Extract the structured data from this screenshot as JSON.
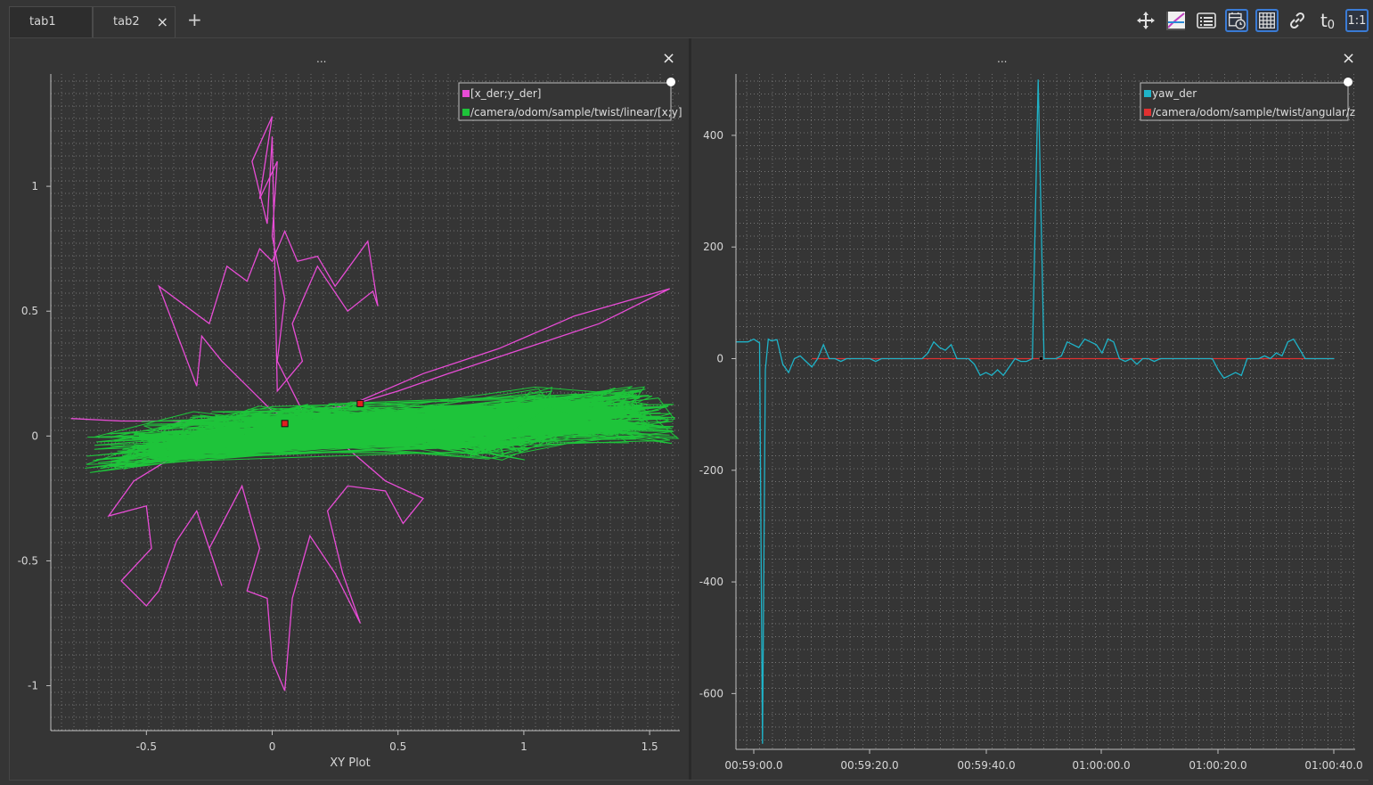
{
  "tabs": [
    {
      "label": "tab1"
    },
    {
      "label": "tab2"
    }
  ],
  "add_tab": "+",
  "close_glyph": "×",
  "toolbar": {
    "icons": [
      "move-icon",
      "zoom-fit-icon",
      "legend-list-icon",
      "time-tracker-icon",
      "grid-icon",
      "link-icon",
      "time-offset-icon",
      "ratio-icon"
    ],
    "time_offset_label": "t",
    "time_offset_sub": "0",
    "ratio_label": "1:1"
  },
  "left_plot": {
    "title_dots": "...",
    "xlabel": "XY Plot",
    "legend": [
      {
        "label": "[x_der;y_der]",
        "color": "#e84cd6"
      },
      {
        "label": "/camera/odom/sample/twist/linear/[x;y]",
        "color": "#1ec43a"
      }
    ]
  },
  "right_plot": {
    "title_dots": "...",
    "legend": [
      {
        "label": "yaw_der",
        "color": "#1fb3c8"
      },
      {
        "label": "/camera/odom/sample/twist/angular/z",
        "color": "#e03030"
      }
    ]
  },
  "chart_data": [
    {
      "type": "scatter",
      "xlabel": "XY Plot",
      "ylabel": "",
      "xlim": [
        -0.88,
        1.62
      ],
      "ylim": [
        -1.18,
        1.45
      ],
      "xticks": [
        "-0.5",
        "0",
        "0.5",
        "1",
        "1.5"
      ],
      "yticks": [
        "1",
        "0.5",
        "0",
        "-0.5",
        "-1"
      ],
      "grid": true,
      "legend_position": "top-right",
      "series": [
        {
          "name": "[x_der;y_der]",
          "color": "#e84cd6",
          "points": [
            [
              -0.8,
              0.07
            ],
            [
              -0.6,
              0.06
            ],
            [
              -0.4,
              0.06
            ],
            [
              -0.15,
              0.05
            ],
            [
              0.0,
              0.03
            ],
            [
              0.15,
              0.02
            ],
            [
              0.3,
              0.01
            ],
            [
              0.0,
              0.0
            ],
            [
              -0.2,
              -0.02
            ],
            [
              -0.42,
              -0.1
            ],
            [
              -0.55,
              -0.18
            ],
            [
              -0.65,
              -0.32
            ],
            [
              -0.5,
              -0.28
            ],
            [
              -0.48,
              -0.45
            ],
            [
              -0.6,
              -0.58
            ],
            [
              -0.5,
              -0.68
            ],
            [
              -0.45,
              -0.62
            ],
            [
              -0.38,
              -0.42
            ],
            [
              -0.3,
              -0.3
            ],
            [
              -0.2,
              -0.6
            ],
            [
              -0.25,
              -0.45
            ],
            [
              -0.12,
              -0.2
            ],
            [
              -0.05,
              -0.45
            ],
            [
              -0.1,
              -0.62
            ],
            [
              -0.02,
              -0.65
            ],
            [
              0.0,
              -0.9
            ],
            [
              0.05,
              -1.02
            ],
            [
              0.08,
              -0.65
            ],
            [
              0.15,
              -0.4
            ],
            [
              0.25,
              -0.55
            ],
            [
              0.35,
              -0.75
            ],
            [
              0.28,
              -0.55
            ],
            [
              0.22,
              -0.3
            ],
            [
              0.3,
              -0.2
            ],
            [
              0.45,
              -0.22
            ],
            [
              0.52,
              -0.35
            ],
            [
              0.6,
              -0.25
            ],
            [
              0.45,
              -0.18
            ],
            [
              0.3,
              -0.05
            ],
            [
              0.15,
              0.05
            ],
            [
              0.0,
              0.1
            ],
            [
              -0.1,
              0.2
            ],
            [
              -0.2,
              0.3
            ],
            [
              -0.28,
              0.4
            ],
            [
              -0.3,
              0.2
            ],
            [
              -0.45,
              0.6
            ],
            [
              -0.25,
              0.45
            ],
            [
              -0.18,
              0.68
            ],
            [
              -0.1,
              0.62
            ],
            [
              -0.05,
              0.75
            ],
            [
              0.0,
              0.7
            ],
            [
              0.05,
              0.82
            ],
            [
              0.1,
              0.7
            ],
            [
              0.18,
              0.72
            ],
            [
              0.25,
              0.6
            ],
            [
              0.38,
              0.78
            ],
            [
              0.42,
              0.52
            ],
            [
              0.4,
              0.58
            ],
            [
              0.3,
              0.5
            ],
            [
              0.18,
              0.68
            ],
            [
              0.08,
              0.45
            ],
            [
              0.12,
              0.3
            ],
            [
              0.02,
              0.18
            ],
            [
              0.0,
              1.2
            ],
            [
              -0.02,
              0.85
            ],
            [
              -0.08,
              1.1
            ],
            [
              0.0,
              1.28
            ],
            [
              -0.05,
              0.95
            ],
            [
              0.02,
              1.1
            ],
            [
              0.0,
              0.8
            ],
            [
              0.05,
              0.55
            ],
            [
              0.02,
              0.3
            ],
            [
              0.12,
              0.1
            ],
            [
              0.3,
              0.12
            ],
            [
              0.6,
              0.25
            ],
            [
              0.9,
              0.35
            ],
            [
              1.2,
              0.48
            ],
            [
              1.58,
              0.59
            ],
            [
              1.3,
              0.45
            ],
            [
              1.0,
              0.35
            ],
            [
              0.7,
              0.25
            ],
            [
              0.5,
              0.18
            ],
            [
              0.3,
              0.12
            ]
          ]
        },
        {
          "name": "/camera/odom/sample/twist/linear/[x;y]",
          "color": "#1ec43a",
          "points": [
            [
              -0.62,
              -0.07
            ],
            [
              -0.4,
              -0.02
            ],
            [
              -0.2,
              0.02
            ],
            [
              0.0,
              0.04
            ],
            [
              0.2,
              0.05
            ],
            [
              0.35,
              0.06
            ],
            [
              0.5,
              0.04
            ],
            [
              0.6,
              0.03
            ],
            [
              0.7,
              0.02
            ],
            [
              0.8,
              0.0
            ],
            [
              0.9,
              -0.02
            ],
            [
              1.0,
              0.05
            ],
            [
              1.1,
              0.12
            ],
            [
              1.2,
              0.08
            ],
            [
              1.3,
              0.1
            ],
            [
              1.42,
              0.12
            ],
            [
              1.5,
              0.05
            ]
          ],
          "markers": [
            [
              0.05,
              0.05
            ],
            [
              0.35,
              0.13
            ]
          ]
        }
      ]
    },
    {
      "type": "line",
      "xlabel": "",
      "ylabel": "",
      "ylim": [
        -700,
        510
      ],
      "xticks": [
        "00:59:00.0",
        "00:59:20.0",
        "00:59:40.0",
        "01:00:00.0",
        "01:00:20.0",
        "01:00:40.0"
      ],
      "yticks": [
        "400",
        "200",
        "0",
        "-200",
        "-400",
        "-600"
      ],
      "grid": true,
      "legend_position": "top-right",
      "series": [
        {
          "name": "yaw_der",
          "color": "#1fb3c8",
          "x": [
            -3,
            -1,
            0,
            1,
            1.5,
            2,
            2.5,
            3,
            4,
            5,
            6,
            7,
            8,
            9,
            10,
            11,
            12,
            13,
            14,
            15,
            16,
            17,
            18,
            19,
            20,
            21,
            22,
            23,
            24,
            25,
            26,
            27,
            28,
            29,
            30,
            31,
            32,
            33,
            34,
            35,
            36,
            37,
            38,
            39,
            40,
            41,
            42,
            43,
            44,
            45,
            46,
            47,
            48,
            49,
            50,
            51,
            52,
            53,
            54,
            55,
            56,
            57,
            58,
            59,
            60,
            61,
            62,
            63,
            64,
            65,
            66,
            67,
            68,
            69,
            70,
            71,
            72,
            73,
            74,
            75,
            76,
            77,
            78,
            79,
            80,
            81,
            82,
            83,
            84,
            85,
            86,
            87,
            88,
            89,
            90,
            91,
            92,
            93,
            95,
            100
          ],
          "values": [
            30,
            30,
            35,
            28,
            -690,
            -20,
            35,
            32,
            34,
            -10,
            -25,
            0,
            5,
            -5,
            -15,
            0,
            25,
            0,
            0,
            -5,
            0,
            0,
            0,
            0,
            0,
            -5,
            0,
            0,
            0,
            0,
            0,
            0,
            0,
            0,
            10,
            30,
            20,
            15,
            25,
            0,
            0,
            0,
            -10,
            -30,
            -25,
            -30,
            -20,
            -30,
            -15,
            0,
            -5,
            -5,
            0,
            500,
            0,
            0,
            0,
            5,
            30,
            25,
            20,
            35,
            30,
            25,
            10,
            35,
            30,
            0,
            -5,
            0,
            -10,
            0,
            0,
            -5,
            0,
            0,
            0,
            0,
            0,
            0,
            0,
            0,
            0,
            0,
            -20,
            -35,
            -30,
            -25,
            -30,
            0,
            0,
            0,
            5,
            0,
            10,
            5,
            30,
            35,
            0,
            0
          ]
        },
        {
          "name": "/camera/odom/sample/twist/angular/z",
          "color": "#e03030",
          "x": [
            10,
            100
          ],
          "values": [
            0,
            0
          ]
        }
      ]
    }
  ]
}
